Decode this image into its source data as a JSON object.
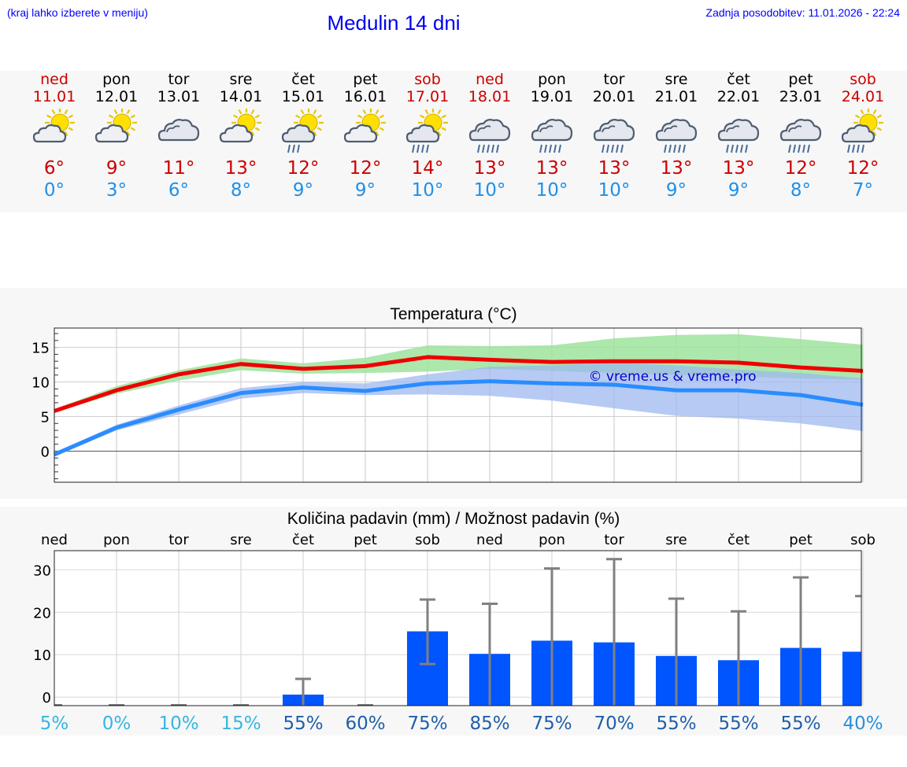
{
  "header": {
    "note": "(kraj lahko izberete v meniju)",
    "title": "Medulin 14 dni",
    "updated": "Zadnja posodobitev: 11.01.2026 - 22:24"
  },
  "colors": {
    "tmax": "#ee0000",
    "tmin": "#2a8cff",
    "band_max": "#9ee39e",
    "band_min": "#9db8ef",
    "bar": "#0055ff",
    "whisker": "#808080",
    "watermark": "#0000cc"
  },
  "days": [
    {
      "name": "ned",
      "date": "11.01",
      "weekend": true,
      "icon": "sun-cloud",
      "tmax": "6°",
      "tmin": "0°"
    },
    {
      "name": "pon",
      "date": "12.01",
      "weekend": false,
      "icon": "sun-cloud",
      "tmax": "9°",
      "tmin": "3°"
    },
    {
      "name": "tor",
      "date": "13.01",
      "weekend": false,
      "icon": "cloudy",
      "tmax": "11°",
      "tmin": "6°"
    },
    {
      "name": "sre",
      "date": "14.01",
      "weekend": false,
      "icon": "sun-cloud",
      "tmax": "13°",
      "tmin": "8°"
    },
    {
      "name": "čet",
      "date": "15.01",
      "weekend": false,
      "icon": "sun-cloud-light-rain",
      "tmax": "12°",
      "tmin": "9°"
    },
    {
      "name": "pet",
      "date": "16.01",
      "weekend": false,
      "icon": "sun-cloud",
      "tmax": "12°",
      "tmin": "9°"
    },
    {
      "name": "sob",
      "date": "17.01",
      "weekend": true,
      "icon": "sun-cloud-rain",
      "tmax": "14°",
      "tmin": "10°"
    },
    {
      "name": "ned",
      "date": "18.01",
      "weekend": true,
      "icon": "cloud-rain",
      "tmax": "13°",
      "tmin": "10°"
    },
    {
      "name": "pon",
      "date": "19.01",
      "weekend": false,
      "icon": "cloud-rain",
      "tmax": "13°",
      "tmin": "10°"
    },
    {
      "name": "tor",
      "date": "20.01",
      "weekend": false,
      "icon": "cloud-rain",
      "tmax": "13°",
      "tmin": "10°"
    },
    {
      "name": "sre",
      "date": "21.01",
      "weekend": false,
      "icon": "cloud-rain",
      "tmax": "13°",
      "tmin": "9°"
    },
    {
      "name": "čet",
      "date": "22.01",
      "weekend": false,
      "icon": "cloud-rain",
      "tmax": "13°",
      "tmin": "9°"
    },
    {
      "name": "pet",
      "date": "23.01",
      "weekend": false,
      "icon": "cloud-rain",
      "tmax": "12°",
      "tmin": "8°"
    },
    {
      "name": "sob",
      "date": "24.01",
      "weekend": true,
      "icon": "sun-cloud-rain",
      "tmax": "12°",
      "tmin": "7°"
    }
  ],
  "chart_data": [
    {
      "type": "line",
      "title": "Temperatura (°C)",
      "watermark": "© vreme.us & vreme.pro",
      "ylim": [
        -4.5,
        17.8
      ],
      "yticks": [
        0,
        5,
        10,
        15
      ],
      "x": [
        0,
        1,
        2,
        3,
        4,
        5,
        6,
        7,
        8,
        9,
        10,
        11,
        12,
        13
      ],
      "series": [
        {
          "name": "tmax",
          "values": [
            5.8,
            8.8,
            11.1,
            12.6,
            11.9,
            12.3,
            13.6,
            13.2,
            12.9,
            13.0,
            13.0,
            12.8,
            12.1,
            11.6
          ],
          "band_low": [
            5.6,
            8.3,
            10.2,
            11.7,
            11.2,
            11.3,
            11.5,
            11.9,
            11.6,
            11.3,
            11.0,
            10.8,
            10.5,
            10.3
          ],
          "band_high": [
            6.1,
            9.4,
            11.7,
            13.4,
            12.7,
            13.5,
            15.3,
            15.2,
            15.3,
            16.3,
            16.8,
            16.9,
            16.2,
            15.4
          ]
        },
        {
          "name": "tmin",
          "values": [
            -0.5,
            3.4,
            6.0,
            8.4,
            9.2,
            8.7,
            9.8,
            10.1,
            9.8,
            9.6,
            8.8,
            8.8,
            8.1,
            6.7
          ],
          "band_low": [
            -0.8,
            3.0,
            5.3,
            7.6,
            8.4,
            8.1,
            8.2,
            8.0,
            7.3,
            6.2,
            5.1,
            4.7,
            4.0,
            2.9
          ],
          "band_high": [
            -0.2,
            3.8,
            6.6,
            9.1,
            10.0,
            9.8,
            11.1,
            12.2,
            12.4,
            12.8,
            12.4,
            11.8,
            11.3,
            10.5
          ]
        }
      ]
    },
    {
      "type": "bar",
      "title": "Količina padavin (mm) / Možnost padavin (%)",
      "categories": [
        "ned",
        "pon",
        "tor",
        "sre",
        "čet",
        "pet",
        "sob",
        "ned",
        "pon",
        "tor",
        "sre",
        "čet",
        "pet",
        "sob"
      ],
      "ylim": [
        -2,
        34.5
      ],
      "yticks": [
        0,
        10,
        20,
        30
      ],
      "values": [
        0,
        0,
        0,
        0,
        0.6,
        0,
        15.5,
        10.2,
        13.3,
        12.9,
        9.7,
        8.7,
        11.6,
        10.7
      ],
      "err_low": [
        0,
        0,
        0,
        0,
        0,
        0,
        7.8,
        0,
        0,
        0,
        0,
        0,
        0,
        0
      ],
      "err_high": [
        0,
        0,
        0,
        0,
        4.3,
        0,
        23.0,
        22.0,
        30.3,
        32.5,
        23.2,
        20.2,
        28.2,
        23.8
      ],
      "chance": [
        "5%",
        "0%",
        "10%",
        "15%",
        "55%",
        "60%",
        "75%",
        "85%",
        "75%",
        "70%",
        "55%",
        "55%",
        "55%",
        "40%"
      ],
      "chance_values": [
        5,
        0,
        10,
        15,
        55,
        60,
        75,
        85,
        75,
        70,
        55,
        55,
        55,
        40
      ]
    }
  ]
}
